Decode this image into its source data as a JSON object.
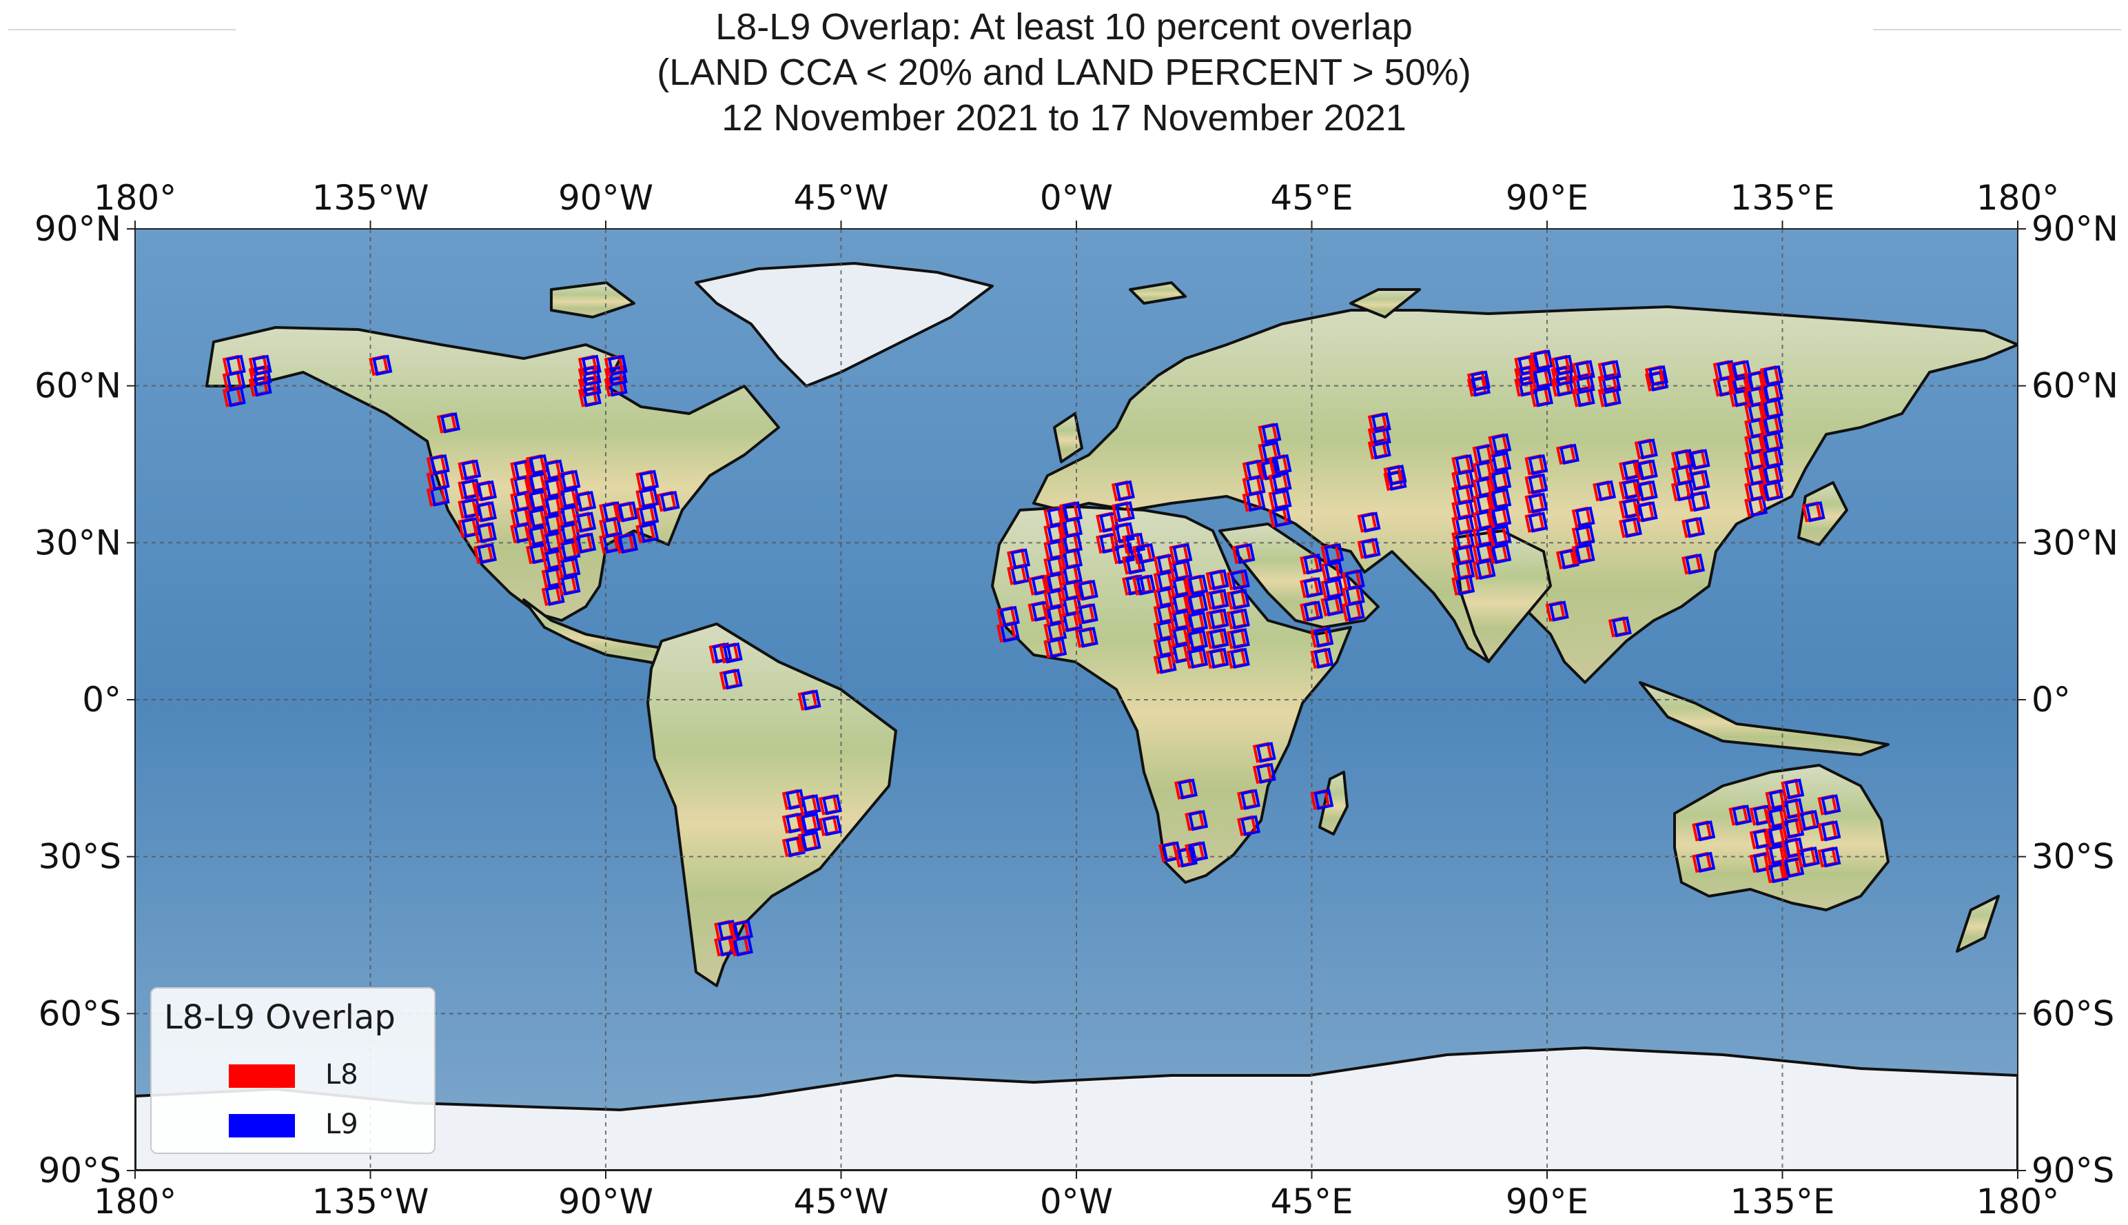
{
  "title": {
    "line1": "L8-L9 Overlap:  At least 10 percent overlap",
    "line2": "(LAND CCA < 20% and LAND PERCENT > 50%)",
    "line3": "12 November 2021 to 17 November 2021"
  },
  "axes": {
    "lon_labels": [
      "180°",
      "135°W",
      "90°W",
      "45°W",
      "0°W",
      "45°E",
      "90°E",
      "135°E",
      "180°"
    ],
    "lat_labels": [
      "90°N",
      "60°N",
      "30°N",
      "0°",
      "30°S",
      "60°S",
      "90°S"
    ]
  },
  "legend": {
    "title": "L8-L9 Overlap",
    "items": [
      {
        "label": "L8",
        "color": "#ff0000"
      },
      {
        "label": "L9",
        "color": "#0000ff"
      }
    ]
  },
  "colors": {
    "ocean": "#5d8fbf",
    "land": "#c8cf97",
    "ice": "#f0f4f8",
    "l8": "#ff0000",
    "l9": "#0000ff"
  },
  "map": {
    "projection": "PlateCarree",
    "lon_range": [
      -180,
      180
    ],
    "lat_range": [
      -90,
      90
    ],
    "gridlines": true,
    "legend_position": "lower-left"
  },
  "scene_strips": [
    {
      "lon": -161,
      "lat_start": 58,
      "lat_end": 64,
      "n": 3
    },
    {
      "lon": -156,
      "lat_start": 60,
      "lat_end": 64,
      "n": 3
    },
    {
      "lon": -133,
      "lat_start": 64,
      "lat_end": 64,
      "n": 2
    },
    {
      "lon": -93,
      "lat_start": 58,
      "lat_end": 64,
      "n": 4
    },
    {
      "lon": -88,
      "lat_start": 60,
      "lat_end": 64,
      "n": 3
    },
    {
      "lon": -120,
      "lat_start": 53,
      "lat_end": 53,
      "n": 2
    },
    {
      "lon": -122,
      "lat_start": 39,
      "lat_end": 45,
      "n": 3
    },
    {
      "lon": -116,
      "lat_start": 33,
      "lat_end": 44,
      "n": 4
    },
    {
      "lon": -113,
      "lat_start": 28,
      "lat_end": 40,
      "n": 4
    },
    {
      "lon": -106,
      "lat_start": 32,
      "lat_end": 44,
      "n": 5
    },
    {
      "lon": -103,
      "lat_start": 28,
      "lat_end": 45,
      "n": 6
    },
    {
      "lon": -100,
      "lat_start": 20,
      "lat_end": 44,
      "n": 8
    },
    {
      "lon": -97,
      "lat_start": 22,
      "lat_end": 42,
      "n": 7
    },
    {
      "lon": -94,
      "lat_start": 30,
      "lat_end": 38,
      "n": 3
    },
    {
      "lon": -89,
      "lat_start": 30,
      "lat_end": 36,
      "n": 3
    },
    {
      "lon": -86,
      "lat_start": 30,
      "lat_end": 36,
      "n": 2
    },
    {
      "lon": -82,
      "lat_start": 32,
      "lat_end": 42,
      "n": 4
    },
    {
      "lon": -78,
      "lat_start": 38,
      "lat_end": 40,
      "n": 1
    },
    {
      "lon": -68,
      "lat_start": 9,
      "lat_end": 11,
      "n": 1
    },
    {
      "lon": -66,
      "lat_start": 4,
      "lat_end": 9,
      "n": 2
    },
    {
      "lon": -51,
      "lat_start": 0,
      "lat_end": 0,
      "n": 1
    },
    {
      "lon": -54,
      "lat_start": -28,
      "lat_end": -19,
      "n": 3
    },
    {
      "lon": -51,
      "lat_start": -27,
      "lat_end": -20,
      "n": 3
    },
    {
      "lon": -47,
      "lat_start": -24,
      "lat_end": -20,
      "n": 2
    },
    {
      "lon": -67,
      "lat_start": -47,
      "lat_end": -44,
      "n": 2
    },
    {
      "lon": -64,
      "lat_start": -47,
      "lat_end": -44,
      "n": 2
    },
    {
      "lon": -13,
      "lat_start": 13,
      "lat_end": 16,
      "n": 2
    },
    {
      "lon": -11,
      "lat_start": 24,
      "lat_end": 27,
      "n": 2
    },
    {
      "lon": -7,
      "lat_start": 17,
      "lat_end": 22,
      "n": 2
    },
    {
      "lon": -4,
      "lat_start": 10,
      "lat_end": 35,
      "n": 9
    },
    {
      "lon": -1,
      "lat_start": 15,
      "lat_end": 36,
      "n": 8
    },
    {
      "lon": 2,
      "lat_start": 12,
      "lat_end": 21,
      "n": 3
    },
    {
      "lon": 6,
      "lat_start": 30,
      "lat_end": 34,
      "n": 2
    },
    {
      "lon": 9,
      "lat_start": 28,
      "lat_end": 40,
      "n": 4
    },
    {
      "lon": 11,
      "lat_start": 22,
      "lat_end": 30,
      "n": 3
    },
    {
      "lon": 13,
      "lat_start": 22,
      "lat_end": 28,
      "n": 2
    },
    {
      "lon": 17,
      "lat_start": 7,
      "lat_end": 26,
      "n": 7
    },
    {
      "lon": 20,
      "lat_start": 9,
      "lat_end": 28,
      "n": 7
    },
    {
      "lon": 23,
      "lat_start": 8,
      "lat_end": 22,
      "n": 5
    },
    {
      "lon": 27,
      "lat_start": 8,
      "lat_end": 23,
      "n": 5
    },
    {
      "lon": 31,
      "lat_start": 8,
      "lat_end": 23,
      "n": 5
    },
    {
      "lon": 32,
      "lat_start": 28,
      "lat_end": 31,
      "n": 1
    },
    {
      "lon": 34,
      "lat_start": 38,
      "lat_end": 44,
      "n": 3
    },
    {
      "lon": 37,
      "lat_start": 44,
      "lat_end": 51,
      "n": 3
    },
    {
      "lon": 39,
      "lat_start": 35,
      "lat_end": 45,
      "n": 4
    },
    {
      "lon": 45,
      "lat_start": 17,
      "lat_end": 26,
      "n": 3
    },
    {
      "lon": 47,
      "lat_start": 8,
      "lat_end": 12,
      "n": 2
    },
    {
      "lon": 49,
      "lat_start": 18,
      "lat_end": 28,
      "n": 4
    },
    {
      "lon": 53,
      "lat_start": 17,
      "lat_end": 23,
      "n": 3
    },
    {
      "lon": 56,
      "lat_start": 29,
      "lat_end": 34,
      "n": 2
    },
    {
      "lon": 58,
      "lat_start": 48,
      "lat_end": 53,
      "n": 3
    },
    {
      "lon": 61,
      "lat_start": 42,
      "lat_end": 43,
      "n": 2
    },
    {
      "lon": 74,
      "lat_start": 22,
      "lat_end": 45,
      "n": 9
    },
    {
      "lon": 78,
      "lat_start": 25,
      "lat_end": 47,
      "n": 8
    },
    {
      "lon": 81,
      "lat_start": 28,
      "lat_end": 49,
      "n": 7
    },
    {
      "lon": 77,
      "lat_start": 60,
      "lat_end": 61,
      "n": 2
    },
    {
      "lon": 86,
      "lat_start": 60,
      "lat_end": 64,
      "n": 3
    },
    {
      "lon": 89,
      "lat_start": 58,
      "lat_end": 65,
      "n": 3
    },
    {
      "lon": 93,
      "lat_start": 60,
      "lat_end": 64,
      "n": 3
    },
    {
      "lon": 97,
      "lat_start": 58,
      "lat_end": 63,
      "n": 3
    },
    {
      "lon": 102,
      "lat_start": 58,
      "lat_end": 63,
      "n": 3
    },
    {
      "lon": 88,
      "lat_start": 34,
      "lat_end": 45,
      "n": 4
    },
    {
      "lon": 94,
      "lat_start": 27,
      "lat_end": 47,
      "n": 2
    },
    {
      "lon": 97,
      "lat_start": 28,
      "lat_end": 35,
      "n": 3
    },
    {
      "lon": 101,
      "lat_start": 40,
      "lat_end": 42,
      "n": 1
    },
    {
      "lon": 106,
      "lat_start": 33,
      "lat_end": 44,
      "n": 4
    },
    {
      "lon": 109,
      "lat_start": 36,
      "lat_end": 48,
      "n": 4
    },
    {
      "lon": 104,
      "lat_start": 14,
      "lat_end": 14,
      "n": 1
    },
    {
      "lon": 92,
      "lat_start": 17,
      "lat_end": 19,
      "n": 1
    },
    {
      "lon": 111,
      "lat_start": 61,
      "lat_end": 62,
      "n": 2
    },
    {
      "lon": 119,
      "lat_start": 38,
      "lat_end": 46,
      "n": 3
    },
    {
      "lon": 116,
      "lat_start": 40,
      "lat_end": 46,
      "n": 3
    },
    {
      "lon": 118,
      "lat_start": 26,
      "lat_end": 33,
      "n": 2
    },
    {
      "lon": 124,
      "lat_start": 60,
      "lat_end": 63,
      "n": 2
    },
    {
      "lon": 127,
      "lat_start": 58,
      "lat_end": 63,
      "n": 3
    },
    {
      "lon": 130,
      "lat_start": 37,
      "lat_end": 61,
      "n": 9
    },
    {
      "lon": 133,
      "lat_start": 40,
      "lat_end": 62,
      "n": 8
    },
    {
      "lon": 141,
      "lat_start": 36,
      "lat_end": 37,
      "n": 1
    },
    {
      "lon": 120,
      "lat_start": -31,
      "lat_end": -25,
      "n": 2
    },
    {
      "lon": 127,
      "lat_start": -22,
      "lat_end": -22,
      "n": 1
    },
    {
      "lon": 131,
      "lat_start": -31,
      "lat_end": -22,
      "n": 3
    },
    {
      "lon": 134,
      "lat_start": -33,
      "lat_end": -19,
      "n": 5
    },
    {
      "lon": 137,
      "lat_start": -32,
      "lat_end": -17,
      "n": 5
    },
    {
      "lon": 140,
      "lat_start": -30,
      "lat_end": -23,
      "n": 2
    },
    {
      "lon": 144,
      "lat_start": -30,
      "lat_end": -20,
      "n": 3
    },
    {
      "lon": 18,
      "lat_start": -29,
      "lat_end": -27,
      "n": 1
    },
    {
      "lon": 21,
      "lat_start": -30,
      "lat_end": -17,
      "n": 2
    },
    {
      "lon": 23,
      "lat_start": -29,
      "lat_end": -23,
      "n": 2
    },
    {
      "lon": 33,
      "lat_start": -24,
      "lat_end": -19,
      "n": 2
    },
    {
      "lon": 36,
      "lat_start": -14,
      "lat_end": -10,
      "n": 2
    },
    {
      "lon": 47,
      "lat_start": -19,
      "lat_end": -19,
      "n": 1
    }
  ]
}
